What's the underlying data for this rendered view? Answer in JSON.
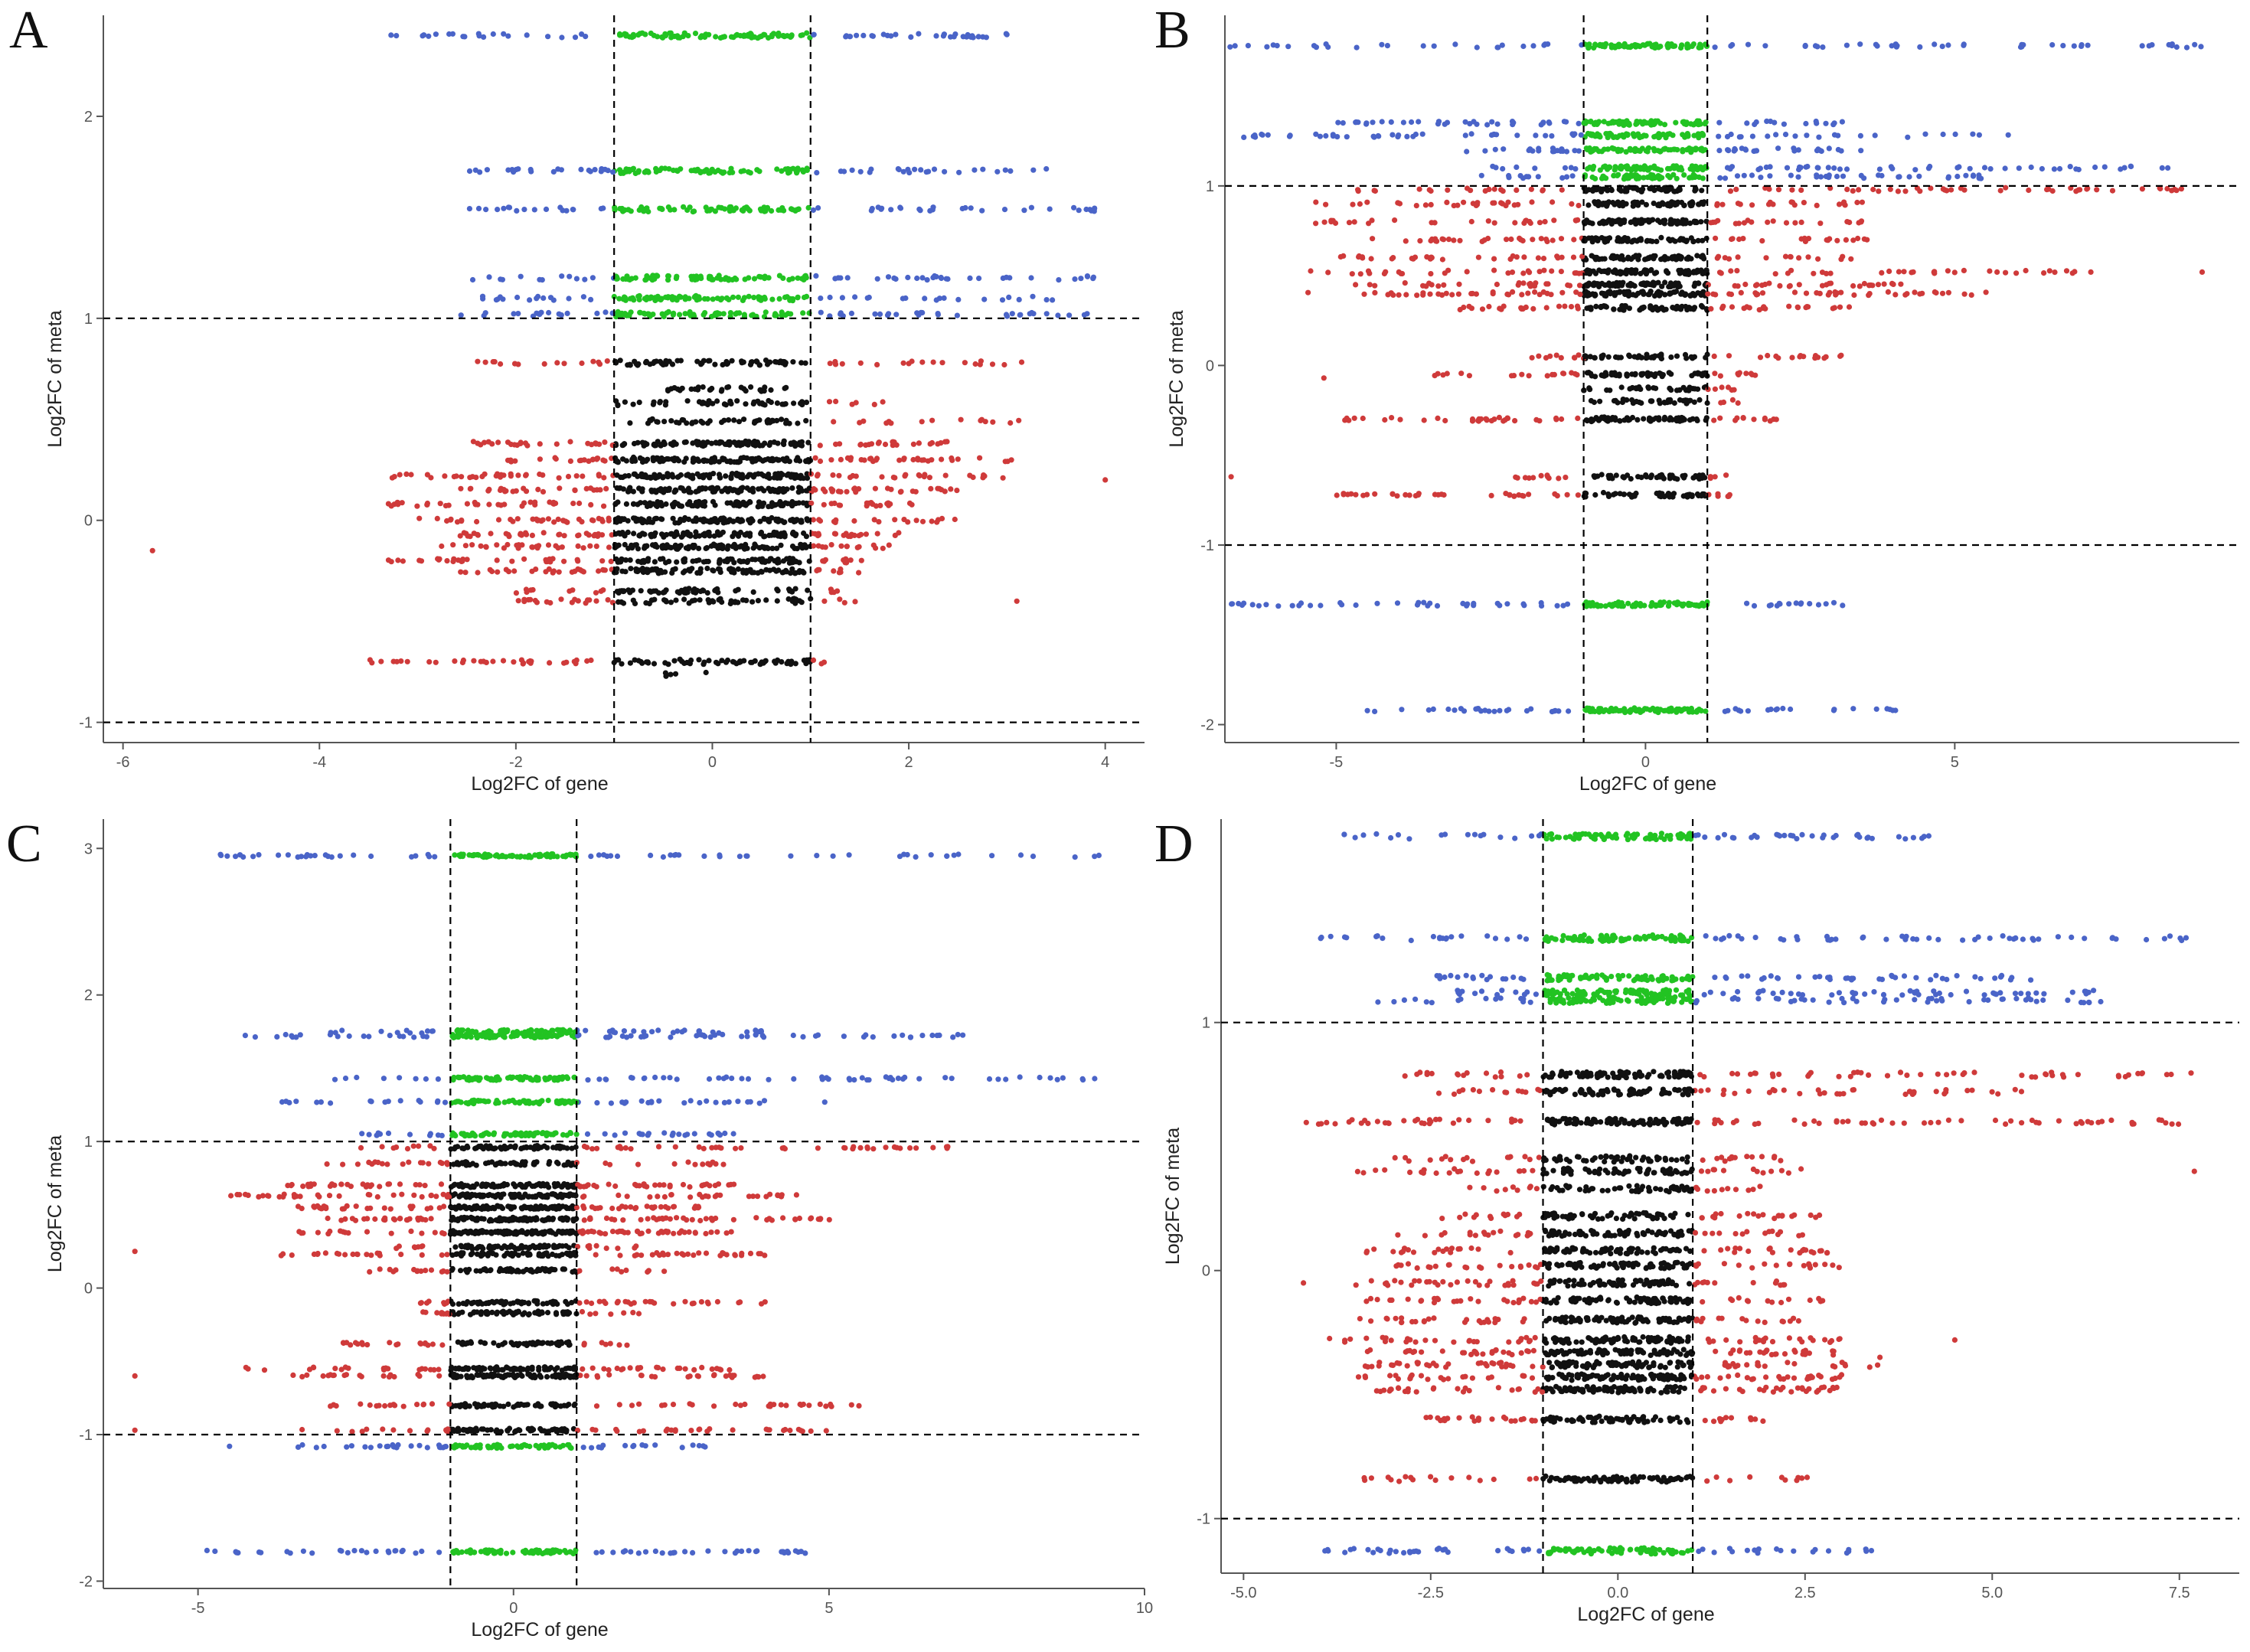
{
  "figure": {
    "colors": {
      "red": "#cf3a3a",
      "blue": "#4a64c8",
      "green": "#22c322",
      "black": "#111111",
      "axis": "#555555"
    }
  },
  "chart_data": [
    {
      "panel": "A",
      "type": "scatter",
      "xlabel": "Log2FC of gene",
      "ylabel": "Log2FC of meta",
      "xlim": [
        -6.2,
        4.4
      ],
      "ylim": [
        -1.1,
        2.5
      ],
      "xticks": [
        -6,
        -4,
        -2,
        0,
        2,
        4
      ],
      "xtick_labels": [
        "-6",
        "-4",
        "-2",
        "0",
        "2",
        "4"
      ],
      "yticks": [
        -1,
        0,
        1,
        2
      ],
      "ytick_labels": [
        "-1",
        "0",
        "1",
        "2"
      ],
      "vlines": [
        -1,
        1
      ],
      "hlines": [
        -1,
        1
      ],
      "rows": [
        {
          "y": 2.4,
          "xmin": -3.3,
          "xmax": 3.0,
          "n": 140
        },
        {
          "y": 1.73,
          "xmin": -2.5,
          "xmax": 3.4,
          "n": 130
        },
        {
          "y": 1.54,
          "xmin": -2.5,
          "xmax": 3.9,
          "n": 120
        },
        {
          "y": 1.2,
          "xmin": -2.5,
          "xmax": 3.9,
          "n": 120
        },
        {
          "y": 1.1,
          "xmin": -2.4,
          "xmax": 3.5,
          "n": 120
        },
        {
          "y": 1.02,
          "xmin": -2.6,
          "xmax": 3.9,
          "n": 120
        },
        {
          "y": 0.78,
          "xmin": -2.4,
          "xmax": 3.2,
          "n": 100
        },
        {
          "y": 0.65,
          "xmin": -0.5,
          "xmax": 0.8,
          "n": 30
        },
        {
          "y": 0.58,
          "xmin": -1.0,
          "xmax": 1.8,
          "n": 50
        },
        {
          "y": 0.49,
          "xmin": -0.9,
          "xmax": 3.2,
          "n": 60
        },
        {
          "y": 0.38,
          "xmin": -2.5,
          "xmax": 2.5,
          "n": 150
        },
        {
          "y": 0.3,
          "xmin": -2.2,
          "xmax": 3.1,
          "n": 160
        },
        {
          "y": 0.22,
          "xmin": -3.3,
          "xmax": 3.2,
          "n": 170
        },
        {
          "y": 0.15,
          "xmin": -2.6,
          "xmax": 2.5,
          "n": 160
        },
        {
          "y": 0.08,
          "xmin": -3.3,
          "xmax": 2.2,
          "n": 150
        },
        {
          "y": 0.0,
          "xmin": -3.0,
          "xmax": 2.5,
          "n": 160
        },
        {
          "y": -0.07,
          "xmin": -2.6,
          "xmax": 2.0,
          "n": 140
        },
        {
          "y": -0.13,
          "xmin": -2.8,
          "xmax": 1.8,
          "n": 140
        },
        {
          "y": -0.2,
          "xmin": -3.3,
          "xmax": 1.6,
          "n": 120
        },
        {
          "y": -0.25,
          "xmin": -2.6,
          "xmax": 1.5,
          "n": 120
        },
        {
          "y": -0.35,
          "xmin": -2.0,
          "xmax": 1.5,
          "n": 70
        },
        {
          "y": -0.4,
          "xmin": -2.0,
          "xmax": 1.5,
          "n": 70
        },
        {
          "y": -0.7,
          "xmin": -3.5,
          "xmax": 1.2,
          "n": 100
        },
        {
          "y": -0.76,
          "xmin": -0.5,
          "xmax": 0.0,
          "n": 5
        }
      ],
      "outliers": [
        {
          "x": -5.7,
          "y": -0.15
        },
        {
          "x": 3.1,
          "y": -0.4
        },
        {
          "x": 4.0,
          "y": 0.2
        }
      ]
    },
    {
      "panel": "B",
      "type": "scatter",
      "xlabel": "Log2FC of gene",
      "ylabel": "Log2FC of meta",
      "xlim": [
        -6.8,
        9.6
      ],
      "ylim": [
        -2.1,
        1.95
      ],
      "xticks": [
        -5,
        0,
        5
      ],
      "xtick_labels": [
        "-5",
        "0",
        "5"
      ],
      "yticks": [
        -2,
        -1,
        0,
        1
      ],
      "ytick_labels": [
        "-2",
        "-1",
        "0",
        "1"
      ],
      "vlines": [
        -1,
        1
      ],
      "hlines": [
        -1,
        1
      ],
      "rows": [
        {
          "y": 1.78,
          "xmin": -6.8,
          "xmax": 9.0,
          "n": 150
        },
        {
          "y": 1.35,
          "xmin": -5.5,
          "xmax": 3.6,
          "n": 120
        },
        {
          "y": 1.28,
          "xmin": -6.8,
          "xmax": 5.9,
          "n": 130
        },
        {
          "y": 1.2,
          "xmin": -3.0,
          "xmax": 3.5,
          "n": 110
        },
        {
          "y": 1.1,
          "xmin": -2.8,
          "xmax": 9.0,
          "n": 120
        },
        {
          "y": 1.05,
          "xmin": -2.7,
          "xmax": 5.7,
          "n": 110
        },
        {
          "y": 0.98,
          "xmin": -4.7,
          "xmax": 9.0,
          "n": 130
        },
        {
          "y": 0.9,
          "xmin": -5.6,
          "xmax": 3.6,
          "n": 120
        },
        {
          "y": 0.8,
          "xmin": -5.6,
          "xmax": 4.0,
          "n": 120
        },
        {
          "y": 0.7,
          "xmin": -4.5,
          "xmax": 3.8,
          "n": 110
        },
        {
          "y": 0.6,
          "xmin": -5.0,
          "xmax": 3.5,
          "n": 110
        },
        {
          "y": 0.52,
          "xmin": -5.6,
          "xmax": 7.0,
          "n": 140
        },
        {
          "y": 0.45,
          "xmin": -4.7,
          "xmax": 4.5,
          "n": 130
        },
        {
          "y": 0.4,
          "xmin": -5.6,
          "xmax": 5.6,
          "n": 150
        },
        {
          "y": 0.32,
          "xmin": -3.2,
          "xmax": 3.5,
          "n": 100
        },
        {
          "y": 0.05,
          "xmin": -2.0,
          "xmax": 3.2,
          "n": 70
        },
        {
          "y": -0.05,
          "xmin": -3.5,
          "xmax": 2.0,
          "n": 80
        },
        {
          "y": -0.13,
          "xmin": -1.0,
          "xmax": 1.5,
          "n": 40
        },
        {
          "y": -0.2,
          "xmin": -1.0,
          "xmax": 1.5,
          "n": 40
        },
        {
          "y": -0.3,
          "xmin": -5.0,
          "xmax": 2.2,
          "n": 110
        },
        {
          "y": -0.62,
          "xmin": -2.5,
          "xmax": 1.5,
          "n": 60
        },
        {
          "y": -0.72,
          "xmin": -5.0,
          "xmax": 1.5,
          "n": 90
        },
        {
          "y": -1.33,
          "xmin": -6.8,
          "xmax": 3.6,
          "n": 130
        },
        {
          "y": -1.92,
          "xmin": -4.5,
          "xmax": 4.2,
          "n": 130
        }
      ],
      "outliers": [
        {
          "x": -5.2,
          "y": -0.07
        },
        {
          "x": -6.7,
          "y": -0.62
        },
        {
          "x": 7.2,
          "y": 0.52
        },
        {
          "x": 9.0,
          "y": 0.52
        }
      ]
    },
    {
      "panel": "C",
      "type": "scatter",
      "xlabel": "Log2FC of gene",
      "ylabel": "Log2FC of meta",
      "xlim": [
        -6.5,
        10
      ],
      "ylim": [
        -2.05,
        3.2
      ],
      "xticks": [
        -5,
        0,
        5,
        10
      ],
      "xtick_labels": [
        "-5",
        "0",
        "5",
        "10"
      ],
      "yticks": [
        -2,
        -1,
        0,
        1,
        2,
        3
      ],
      "ytick_labels": [
        "-2",
        "-1",
        "0",
        "1",
        "2",
        "3"
      ],
      "vlines": [
        -1,
        1
      ],
      "hlines": [
        -1,
        1
      ],
      "rows": [
        {
          "y": 2.95,
          "xmin": -4.9,
          "xmax": 9.3,
          "n": 130
        },
        {
          "y": 1.75,
          "xmin": -3.0,
          "xmax": 4.0,
          "n": 90
        },
        {
          "y": 1.72,
          "xmin": -4.3,
          "xmax": 7.3,
          "n": 140
        },
        {
          "y": 1.43,
          "xmin": -2.9,
          "xmax": 9.3,
          "n": 130
        },
        {
          "y": 1.27,
          "xmin": -3.7,
          "xmax": 5.0,
          "n": 110
        },
        {
          "y": 1.05,
          "xmin": -2.6,
          "xmax": 3.5,
          "n": 100
        },
        {
          "y": 0.96,
          "xmin": -2.5,
          "xmax": 7.3,
          "n": 110
        },
        {
          "y": 0.85,
          "xmin": -3.0,
          "xmax": 3.5,
          "n": 90
        },
        {
          "y": 0.7,
          "xmin": -3.7,
          "xmax": 3.5,
          "n": 150
        },
        {
          "y": 0.63,
          "xmin": -4.5,
          "xmax": 4.5,
          "n": 160
        },
        {
          "y": 0.55,
          "xmin": -3.5,
          "xmax": 3.2,
          "n": 160
        },
        {
          "y": 0.47,
          "xmin": -3.0,
          "xmax": 5.1,
          "n": 160
        },
        {
          "y": 0.38,
          "xmin": -3.5,
          "xmax": 3.5,
          "n": 160
        },
        {
          "y": 0.28,
          "xmin": -2.0,
          "xmax": 2.0,
          "n": 80
        },
        {
          "y": 0.23,
          "xmin": -3.7,
          "xmax": 4.0,
          "n": 110
        },
        {
          "y": 0.12,
          "xmin": -2.5,
          "xmax": 2.5,
          "n": 80
        },
        {
          "y": -0.1,
          "xmin": -1.5,
          "xmax": 4.0,
          "n": 90
        },
        {
          "y": -0.17,
          "xmin": -1.5,
          "xmax": 2.0,
          "n": 70
        },
        {
          "y": -0.38,
          "xmin": -2.8,
          "xmax": 2.0,
          "n": 80
        },
        {
          "y": -0.55,
          "xmin": -4.5,
          "xmax": 3.5,
          "n": 110
        },
        {
          "y": -0.6,
          "xmin": -3.5,
          "xmax": 4.0,
          "n": 120
        },
        {
          "y": -0.8,
          "xmin": -3.0,
          "xmax": 5.5,
          "n": 110
        },
        {
          "y": -0.97,
          "xmin": -3.5,
          "xmax": 5.0,
          "n": 110
        },
        {
          "y": -1.08,
          "xmin": -3.5,
          "xmax": 3.2,
          "n": 100
        },
        {
          "y": -1.8,
          "xmin": -5.0,
          "xmax": 4.7,
          "n": 130
        }
      ],
      "outliers": [
        {
          "x": -6.0,
          "y": 0.25
        },
        {
          "x": -6.0,
          "y": -0.6
        },
        {
          "x": -6.0,
          "y": -0.97
        },
        {
          "x": -4.5,
          "y": -1.08
        }
      ]
    },
    {
      "panel": "D",
      "type": "scatter",
      "xlabel": "Log2FC of gene",
      "ylabel": "Log2FC of meta",
      "xlim": [
        -5.3,
        8.3
      ],
      "ylim": [
        -1.22,
        1.82
      ],
      "xticks": [
        -5,
        -2.5,
        0,
        2.5,
        5,
        7.5
      ],
      "xtick_labels": [
        "-5.0",
        "-2.5",
        "0.0",
        "2.5",
        "5.0",
        "7.5"
      ],
      "yticks": [
        -1,
        0,
        1
      ],
      "ytick_labels": [
        "-1",
        "0",
        "1"
      ],
      "vlines": [
        -1,
        1
      ],
      "hlines": [
        -1,
        1
      ],
      "rows": [
        {
          "y": 1.75,
          "xmin": -3.7,
          "xmax": 4.2,
          "n": 130
        },
        {
          "y": 1.34,
          "xmin": -4.0,
          "xmax": 7.7,
          "n": 150
        },
        {
          "y": 1.18,
          "xmin": -2.6,
          "xmax": 5.7,
          "n": 130
        },
        {
          "y": 1.12,
          "xmin": -3.0,
          "xmax": 6.5,
          "n": 140
        },
        {
          "y": 1.09,
          "xmin": -3.3,
          "xmax": 6.5,
          "n": 140
        },
        {
          "y": 0.79,
          "xmin": -3.0,
          "xmax": 7.7,
          "n": 150
        },
        {
          "y": 0.72,
          "xmin": -2.5,
          "xmax": 5.5,
          "n": 120
        },
        {
          "y": 0.6,
          "xmin": -4.3,
          "xmax": 7.7,
          "n": 180
        },
        {
          "y": 0.45,
          "xmin": -3.0,
          "xmax": 2.2,
          "n": 80
        },
        {
          "y": 0.4,
          "xmin": -3.5,
          "xmax": 2.5,
          "n": 90
        },
        {
          "y": 0.33,
          "xmin": -2.0,
          "xmax": 2.0,
          "n": 70
        },
        {
          "y": 0.22,
          "xmin": -2.5,
          "xmax": 2.8,
          "n": 90
        },
        {
          "y": 0.15,
          "xmin": -3.0,
          "xmax": 2.7,
          "n": 100
        },
        {
          "y": 0.08,
          "xmin": -3.5,
          "xmax": 3.0,
          "n": 110
        },
        {
          "y": 0.02,
          "xmin": -3.0,
          "xmax": 3.0,
          "n": 110
        },
        {
          "y": -0.05,
          "xmin": -3.5,
          "xmax": 2.5,
          "n": 110
        },
        {
          "y": -0.12,
          "xmin": -3.5,
          "xmax": 2.8,
          "n": 120
        },
        {
          "y": -0.2,
          "xmin": -3.5,
          "xmax": 2.5,
          "n": 120
        },
        {
          "y": -0.28,
          "xmin": -4.0,
          "xmax": 3.0,
          "n": 130
        },
        {
          "y": -0.33,
          "xmin": -3.5,
          "xmax": 3.0,
          "n": 130
        },
        {
          "y": -0.38,
          "xmin": -3.5,
          "xmax": 3.5,
          "n": 140
        },
        {
          "y": -0.43,
          "xmin": -3.5,
          "xmax": 3.0,
          "n": 140
        },
        {
          "y": -0.48,
          "xmin": -3.5,
          "xmax": 3.0,
          "n": 140
        },
        {
          "y": -0.6,
          "xmin": -3.0,
          "xmax": 2.0,
          "n": 100
        },
        {
          "y": -0.84,
          "xmin": -3.5,
          "xmax": 2.7,
          "n": 100
        },
        {
          "y": -1.13,
          "xmin": -4.2,
          "xmax": 3.5,
          "n": 120
        }
      ],
      "outliers": [
        {
          "x": -4.2,
          "y": -0.05
        },
        {
          "x": 3.5,
          "y": -0.35
        },
        {
          "x": 4.5,
          "y": -0.28
        },
        {
          "x": 7.7,
          "y": 0.4
        }
      ]
    }
  ]
}
